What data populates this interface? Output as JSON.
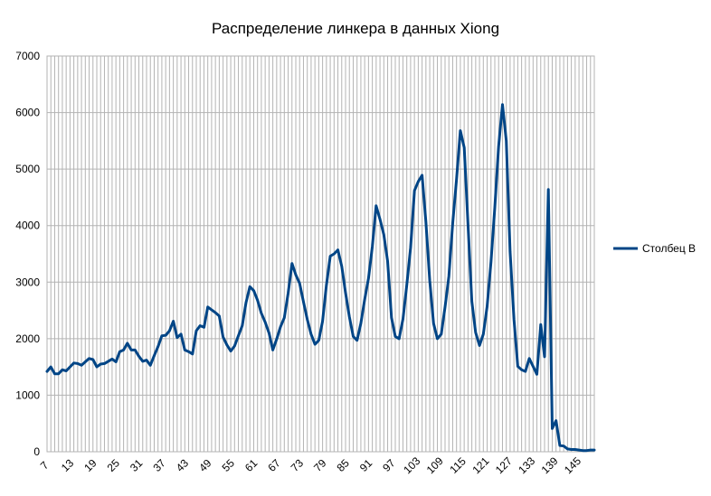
{
  "chart_data": {
    "type": "line",
    "title": "Распределение линкера в данных Xiong",
    "xlabel": "",
    "ylabel": "",
    "ylim": [
      0,
      7000
    ],
    "yticks": [
      0,
      1000,
      2000,
      3000,
      4000,
      5000,
      6000,
      7000
    ],
    "xlim": [
      7,
      150
    ],
    "xticks": [
      7,
      13,
      19,
      25,
      31,
      37,
      43,
      49,
      55,
      61,
      67,
      73,
      79,
      85,
      91,
      97,
      103,
      109,
      115,
      121,
      127,
      133,
      139,
      145
    ],
    "grid": true,
    "legend_position": "right",
    "color": "#004586",
    "series": [
      {
        "name": "Столбец B",
        "x": [
          7,
          8,
          9,
          10,
          11,
          12,
          13,
          14,
          15,
          16,
          17,
          18,
          19,
          20,
          21,
          22,
          23,
          24,
          25,
          26,
          27,
          28,
          29,
          30,
          31,
          32,
          33,
          34,
          35,
          36,
          37,
          38,
          39,
          40,
          41,
          42,
          43,
          44,
          45,
          46,
          47,
          48,
          49,
          50,
          51,
          52,
          53,
          54,
          55,
          56,
          57,
          58,
          59,
          60,
          61,
          62,
          63,
          64,
          65,
          66,
          67,
          68,
          69,
          70,
          71,
          72,
          73,
          74,
          75,
          76,
          77,
          78,
          79,
          80,
          81,
          82,
          83,
          84,
          85,
          86,
          87,
          88,
          89,
          90,
          91,
          92,
          93,
          94,
          95,
          96,
          97,
          98,
          99,
          100,
          101,
          102,
          103,
          104,
          105,
          106,
          107,
          108,
          109,
          110,
          111,
          112,
          113,
          114,
          115,
          116,
          117,
          118,
          119,
          120,
          121,
          122,
          123,
          124,
          125,
          126,
          127,
          128,
          129,
          130,
          131,
          132,
          133,
          134,
          135,
          136,
          137,
          138,
          139,
          140,
          141,
          142,
          143,
          144,
          145,
          146,
          147,
          148,
          149,
          150
        ],
        "values": [
          1420,
          1500,
          1380,
          1380,
          1450,
          1430,
          1500,
          1570,
          1560,
          1530,
          1590,
          1650,
          1630,
          1500,
          1550,
          1560,
          1600,
          1640,
          1590,
          1770,
          1800,
          1920,
          1800,
          1800,
          1690,
          1600,
          1620,
          1530,
          1700,
          1860,
          2050,
          2060,
          2140,
          2310,
          2020,
          2080,
          1800,
          1770,
          1730,
          2140,
          2230,
          2200,
          2560,
          2510,
          2460,
          2400,
          2030,
          1890,
          1780,
          1870,
          2050,
          2230,
          2640,
          2920,
          2850,
          2680,
          2450,
          2290,
          2100,
          1800,
          1990,
          2210,
          2370,
          2800,
          3330,
          3130,
          2980,
          2650,
          2340,
          2080,
          1900,
          1970,
          2310,
          2940,
          3460,
          3500,
          3570,
          3280,
          2810,
          2390,
          2040,
          1970,
          2270,
          2700,
          3070,
          3630,
          4350,
          4110,
          3840,
          3370,
          2370,
          2040,
          2000,
          2350,
          2950,
          3610,
          4620,
          4780,
          4890,
          4070,
          3020,
          2270,
          2000,
          2080,
          2560,
          3100,
          4050,
          4820,
          5680,
          5380,
          4010,
          2660,
          2110,
          1880,
          2080,
          2570,
          3360,
          4320,
          5400,
          6140,
          5500,
          3540,
          2340,
          1510,
          1450,
          1420,
          1650,
          1510,
          1370,
          2250,
          1680,
          4640,
          410,
          550,
          110,
          100,
          50,
          40,
          40,
          30,
          20,
          20,
          30,
          30
        ]
      }
    ]
  }
}
